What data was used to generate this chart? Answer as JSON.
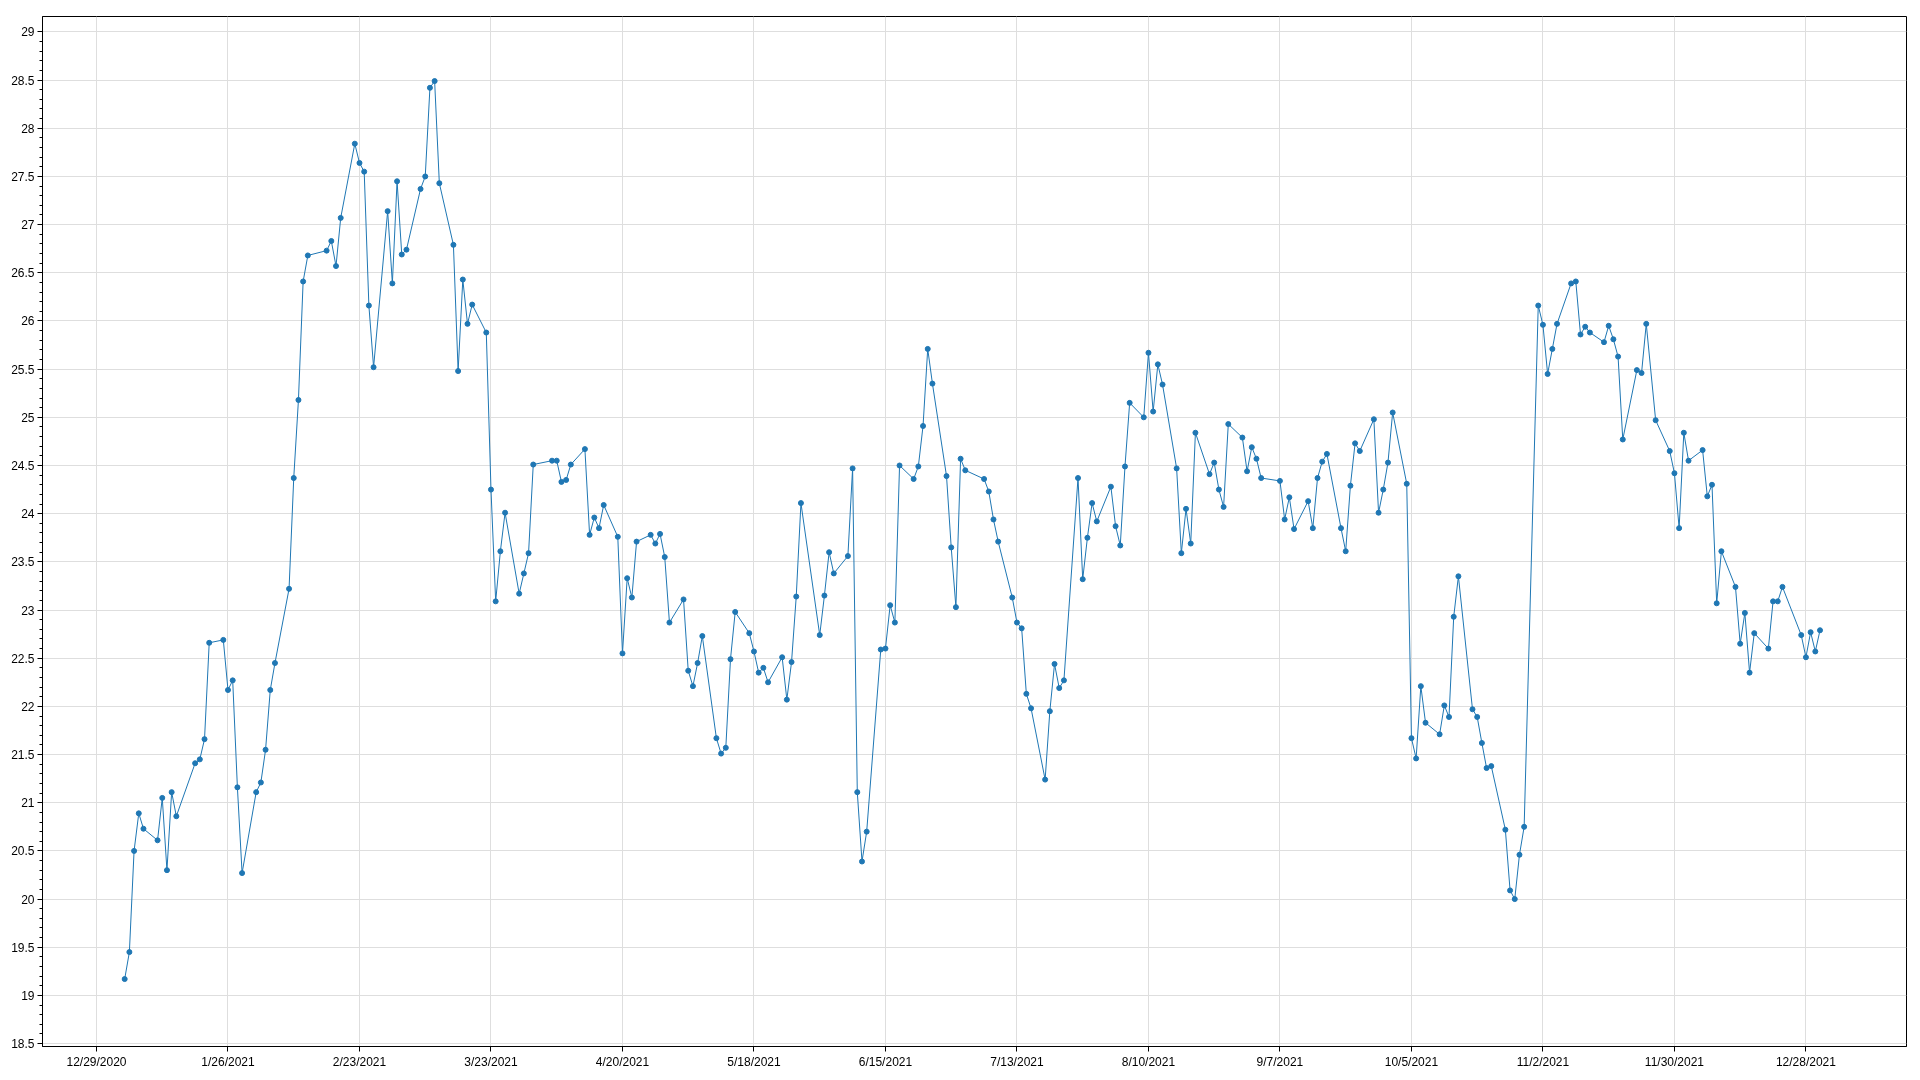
{
  "chart_data": {
    "type": "line",
    "x": [
      "2021-01-04",
      "2021-01-05",
      "2021-01-06",
      "2021-01-07",
      "2021-01-08",
      "2021-01-11",
      "2021-01-12",
      "2021-01-13",
      "2021-01-14",
      "2021-01-15",
      "2021-01-19",
      "2021-01-20",
      "2021-01-21",
      "2021-01-22",
      "2021-01-25",
      "2021-01-26",
      "2021-01-27",
      "2021-01-28",
      "2021-01-29",
      "2021-02-01",
      "2021-02-02",
      "2021-02-03",
      "2021-02-04",
      "2021-02-05",
      "2021-02-08",
      "2021-02-09",
      "2021-02-10",
      "2021-02-11",
      "2021-02-12",
      "2021-02-16",
      "2021-02-17",
      "2021-02-18",
      "2021-02-19",
      "2021-02-22",
      "2021-02-23",
      "2021-02-24",
      "2021-02-25",
      "2021-02-26",
      "2021-03-01",
      "2021-03-02",
      "2021-03-03",
      "2021-03-04",
      "2021-03-05",
      "2021-03-08",
      "2021-03-09",
      "2021-03-10",
      "2021-03-11",
      "2021-03-12",
      "2021-03-15",
      "2021-03-16",
      "2021-03-17",
      "2021-03-18",
      "2021-03-19",
      "2021-03-22",
      "2021-03-23",
      "2021-03-24",
      "2021-03-25",
      "2021-03-26",
      "2021-03-29",
      "2021-03-30",
      "2021-03-31",
      "2021-04-01",
      "2021-04-05",
      "2021-04-06",
      "2021-04-07",
      "2021-04-08",
      "2021-04-09",
      "2021-04-12",
      "2021-04-13",
      "2021-04-14",
      "2021-04-15",
      "2021-04-16",
      "2021-04-19",
      "2021-04-20",
      "2021-04-21",
      "2021-04-22",
      "2021-04-23",
      "2021-04-26",
      "2021-04-27",
      "2021-04-28",
      "2021-04-29",
      "2021-04-30",
      "2021-05-03",
      "2021-05-04",
      "2021-05-05",
      "2021-05-06",
      "2021-05-07",
      "2021-05-10",
      "2021-05-11",
      "2021-05-12",
      "2021-05-13",
      "2021-05-14",
      "2021-05-17",
      "2021-05-18",
      "2021-05-19",
      "2021-05-20",
      "2021-05-21",
      "2021-05-24",
      "2021-05-25",
      "2021-05-26",
      "2021-05-27",
      "2021-05-28",
      "2021-06-01",
      "2021-06-02",
      "2021-06-03",
      "2021-06-04",
      "2021-06-07",
      "2021-06-08",
      "2021-06-09",
      "2021-06-10",
      "2021-06-11",
      "2021-06-14",
      "2021-06-15",
      "2021-06-16",
      "2021-06-17",
      "2021-06-18",
      "2021-06-21",
      "2021-06-22",
      "2021-06-23",
      "2021-06-24",
      "2021-06-25",
      "2021-06-28",
      "2021-06-29",
      "2021-06-30",
      "2021-07-01",
      "2021-07-02",
      "2021-07-06",
      "2021-07-07",
      "2021-07-08",
      "2021-07-09",
      "2021-07-12",
      "2021-07-13",
      "2021-07-14",
      "2021-07-15",
      "2021-07-16",
      "2021-07-19",
      "2021-07-20",
      "2021-07-21",
      "2021-07-22",
      "2021-07-23",
      "2021-07-26",
      "2021-07-27",
      "2021-07-28",
      "2021-07-29",
      "2021-07-30",
      "2021-08-02",
      "2021-08-03",
      "2021-08-04",
      "2021-08-05",
      "2021-08-06",
      "2021-08-09",
      "2021-08-10",
      "2021-08-11",
      "2021-08-12",
      "2021-08-13",
      "2021-08-16",
      "2021-08-17",
      "2021-08-18",
      "2021-08-19",
      "2021-08-20",
      "2021-08-23",
      "2021-08-24",
      "2021-08-25",
      "2021-08-26",
      "2021-08-27",
      "2021-08-30",
      "2021-08-31",
      "2021-09-01",
      "2021-09-02",
      "2021-09-03",
      "2021-09-07",
      "2021-09-08",
      "2021-09-09",
      "2021-09-10",
      "2021-09-13",
      "2021-09-14",
      "2021-09-15",
      "2021-09-16",
      "2021-09-17",
      "2021-09-20",
      "2021-09-21",
      "2021-09-22",
      "2021-09-23",
      "2021-09-24",
      "2021-09-27",
      "2021-09-28",
      "2021-09-29",
      "2021-09-30",
      "2021-10-01",
      "2021-10-04",
      "2021-10-05",
      "2021-10-06",
      "2021-10-07",
      "2021-10-08",
      "2021-10-11",
      "2021-10-12",
      "2021-10-13",
      "2021-10-14",
      "2021-10-15",
      "2021-10-18",
      "2021-10-19",
      "2021-10-20",
      "2021-10-21",
      "2021-10-22",
      "2021-10-25",
      "2021-10-26",
      "2021-10-27",
      "2021-10-28",
      "2021-10-29",
      "2021-11-01",
      "2021-11-02",
      "2021-11-03",
      "2021-11-04",
      "2021-11-05",
      "2021-11-08",
      "2021-11-09",
      "2021-11-10",
      "2021-11-11",
      "2021-11-12",
      "2021-11-15",
      "2021-11-16",
      "2021-11-17",
      "2021-11-18",
      "2021-11-19",
      "2021-11-22",
      "2021-11-23",
      "2021-11-24",
      "2021-11-26",
      "2021-11-29",
      "2021-11-30",
      "2021-12-01",
      "2021-12-02",
      "2021-12-03",
      "2021-12-06",
      "2021-12-07",
      "2021-12-08",
      "2021-12-09",
      "2021-12-10",
      "2021-12-13",
      "2021-12-14",
      "2021-12-15",
      "2021-12-16",
      "2021-12-17",
      "2021-12-20",
      "2021-12-21",
      "2021-12-22",
      "2021-12-23",
      "2021-12-27",
      "2021-12-28",
      "2021-12-29",
      "2021-12-30",
      "2021-12-31"
    ],
    "series": [
      {
        "color": "#1f77b4",
        "values": [
          19.17,
          19.45,
          20.5,
          20.89,
          20.73,
          20.61,
          21.05,
          20.3,
          21.11,
          20.86,
          21.41,
          21.45,
          21.66,
          22.66,
          22.69,
          22.17,
          22.27,
          21.16,
          20.27,
          21.11,
          21.21,
          21.55,
          22.17,
          22.45,
          23.22,
          24.37,
          25.18,
          26.41,
          26.68,
          26.73,
          26.83,
          26.57,
          27.07,
          27.84,
          27.64,
          27.55,
          26.16,
          25.52,
          27.14,
          26.39,
          27.45,
          26.69,
          26.74,
          27.37,
          27.5,
          28.42,
          28.49,
          27.43,
          26.79,
          25.48,
          26.43,
          25.97,
          26.17,
          25.88,
          24.25,
          23.09,
          23.61,
          24.01,
          23.17,
          23.38,
          23.59,
          24.51,
          24.55,
          24.55,
          24.33,
          24.35,
          24.51,
          24.67,
          23.78,
          23.96,
          23.85,
          24.09,
          23.76,
          22.55,
          23.33,
          23.13,
          23.71,
          23.78,
          23.69,
          23.79,
          23.55,
          22.87,
          23.11,
          22.37,
          22.21,
          22.45,
          22.73,
          21.67,
          21.51,
          21.57,
          22.49,
          22.98,
          22.76,
          22.57,
          22.35,
          22.4,
          22.25,
          22.51,
          22.07,
          22.46,
          23.14,
          24.11,
          22.74,
          23.15,
          23.6,
          23.38,
          23.56,
          24.47,
          21.11,
          20.39,
          20.7,
          22.59,
          22.6,
          23.05,
          22.87,
          24.5,
          24.36,
          24.49,
          24.91,
          25.71,
          25.35,
          24.39,
          23.65,
          23.03,
          24.57,
          24.45,
          24.36,
          24.23,
          23.94,
          23.71,
          23.13,
          22.87,
          22.81,
          22.13,
          21.98,
          21.24,
          21.95,
          22.44,
          22.19,
          22.27,
          24.37,
          23.32,
          23.75,
          24.11,
          23.92,
          24.28,
          23.87,
          23.67,
          24.49,
          25.15,
          25.0,
          25.67,
          25.06,
          25.55,
          25.34,
          24.47,
          23.59,
          24.05,
          23.69,
          24.84,
          24.41,
          24.53,
          24.25,
          24.07,
          24.93,
          24.79,
          24.44,
          24.69,
          24.57,
          24.37,
          24.34,
          23.94,
          24.17,
          23.84,
          24.13,
          23.85,
          24.37,
          24.54,
          24.62,
          23.85,
          23.61,
          24.29,
          24.73,
          24.65,
          24.98,
          24.01,
          24.25,
          24.53,
          25.05,
          24.31,
          21.67,
          21.46,
          22.21,
          21.83,
          21.71,
          22.01,
          21.89,
          22.93,
          23.35,
          21.97,
          21.89,
          21.62,
          21.36,
          21.38,
          20.72,
          20.09,
          20.0,
          20.46,
          20.75,
          26.16,
          25.96,
          25.45,
          25.71,
          25.97,
          26.39,
          26.41,
          25.86,
          25.94,
          25.88,
          25.78,
          25.95,
          25.81,
          25.63,
          24.77,
          25.49,
          25.46,
          25.97,
          24.97,
          24.65,
          24.42,
          23.85,
          24.84,
          24.55,
          24.66,
          24.18,
          24.3,
          23.07,
          23.61,
          23.24,
          22.65,
          22.97,
          22.35,
          22.76,
          22.6,
          23.09,
          23.09,
          23.24,
          22.74,
          22.51,
          22.77,
          22.57,
          22.79
        ]
      }
    ],
    "xlim": [
      "2020-12-17T12:00",
      "2022-01-18T10:00"
    ],
    "ylim": [
      18.47,
      29.16
    ],
    "xticks": [
      {
        "value": "2020-12-29",
        "label": "12/29/2020"
      },
      {
        "value": "2021-01-26",
        "label": "1/26/2021"
      },
      {
        "value": "2021-02-23",
        "label": "2/23/2021"
      },
      {
        "value": "2021-03-23",
        "label": "3/23/2021"
      },
      {
        "value": "2021-04-20",
        "label": "4/20/2021"
      },
      {
        "value": "2021-05-18",
        "label": "5/18/2021"
      },
      {
        "value": "2021-06-15",
        "label": "6/15/2021"
      },
      {
        "value": "2021-07-13",
        "label": "7/13/2021"
      },
      {
        "value": "2021-08-10",
        "label": "8/10/2021"
      },
      {
        "value": "2021-09-07",
        "label": "9/7/2021"
      },
      {
        "value": "2021-10-05",
        "label": "10/5/2021"
      },
      {
        "value": "2021-11-02",
        "label": "11/2/2021"
      },
      {
        "value": "2021-11-30",
        "label": "11/30/2021"
      },
      {
        "value": "2021-12-28",
        "label": "12/28/2021"
      }
    ],
    "yticks": [
      18.5,
      19,
      19.5,
      20,
      20.5,
      21,
      21.5,
      22,
      22.5,
      23,
      23.5,
      24,
      24.5,
      25,
      25.5,
      26,
      26.5,
      27,
      27.5,
      28,
      28.5,
      29
    ],
    "grid": true,
    "marker": "circle",
    "line_style": "solid"
  }
}
